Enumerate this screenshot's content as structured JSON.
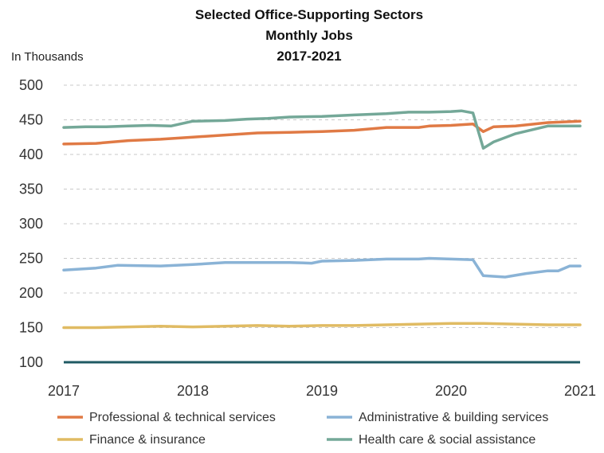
{
  "chart_data": {
    "type": "line",
    "title_lines": [
      "Selected Office-Supporting Sectors",
      "Monthly Jobs",
      "2017-2021"
    ],
    "ylabel": "In Thousands",
    "xlabel": "",
    "ylim": [
      100,
      500
    ],
    "yticks": [
      100,
      150,
      200,
      250,
      300,
      350,
      400,
      450,
      500
    ],
    "xlim": [
      2017,
      2021
    ],
    "xticks": [
      "2017",
      "2018",
      "2019",
      "2020",
      "2021"
    ],
    "grid": true,
    "baseline_color": "#1f5a63",
    "legend_position": "bottom",
    "series": [
      {
        "name": "Professional & technical services",
        "color": "#e07a45",
        "x": [
          2017.0,
          2017.25,
          2017.5,
          2017.75,
          2018.0,
          2018.25,
          2018.5,
          2018.75,
          2019.0,
          2019.25,
          2019.5,
          2019.75,
          2019.83,
          2020.0,
          2020.17,
          2020.25,
          2020.33,
          2020.5,
          2020.75,
          2021.0
        ],
        "values": [
          415,
          416,
          420,
          422,
          425,
          428,
          431,
          432,
          433,
          435,
          439,
          439,
          441,
          442,
          444,
          433,
          440,
          441,
          446,
          448
        ]
      },
      {
        "name": "Administrative & building services",
        "color": "#8ab3d6",
        "x": [
          2017.0,
          2017.25,
          2017.42,
          2017.75,
          2018.0,
          2018.25,
          2018.5,
          2018.75,
          2018.92,
          2019.0,
          2019.25,
          2019.5,
          2019.75,
          2019.83,
          2020.0,
          2020.17,
          2020.25,
          2020.42,
          2020.58,
          2020.75,
          2020.83,
          2020.92,
          2021.0
        ],
        "values": [
          233,
          236,
          240,
          239,
          241,
          244,
          244,
          244,
          243,
          246,
          247,
          249,
          249,
          250,
          249,
          248,
          225,
          223,
          228,
          232,
          232,
          239,
          239
        ]
      },
      {
        "name": "Finance & insurance",
        "color": "#e0bb63",
        "x": [
          2017.0,
          2017.25,
          2017.5,
          2017.75,
          2018.0,
          2018.25,
          2018.5,
          2018.75,
          2019.0,
          2019.25,
          2019.5,
          2019.75,
          2020.0,
          2020.25,
          2020.5,
          2020.75,
          2021.0
        ],
        "values": [
          150,
          150,
          151,
          152,
          151,
          152,
          153,
          152,
          153,
          153,
          154,
          155,
          156,
          156,
          155,
          154,
          154
        ]
      },
      {
        "name": "Health care & social assistance",
        "color": "#74a898",
        "x": [
          2017.0,
          2017.17,
          2017.33,
          2017.5,
          2017.67,
          2017.83,
          2018.0,
          2018.25,
          2018.42,
          2018.58,
          2018.75,
          2019.0,
          2019.25,
          2019.5,
          2019.67,
          2019.83,
          2020.0,
          2020.08,
          2020.17,
          2020.25,
          2020.33,
          2020.5,
          2020.75,
          2021.0
        ],
        "values": [
          439,
          440,
          440,
          441,
          442,
          441,
          448,
          449,
          451,
          452,
          454,
          455,
          457,
          459,
          461,
          461,
          462,
          463,
          460,
          409,
          418,
          430,
          441,
          441
        ]
      }
    ]
  }
}
